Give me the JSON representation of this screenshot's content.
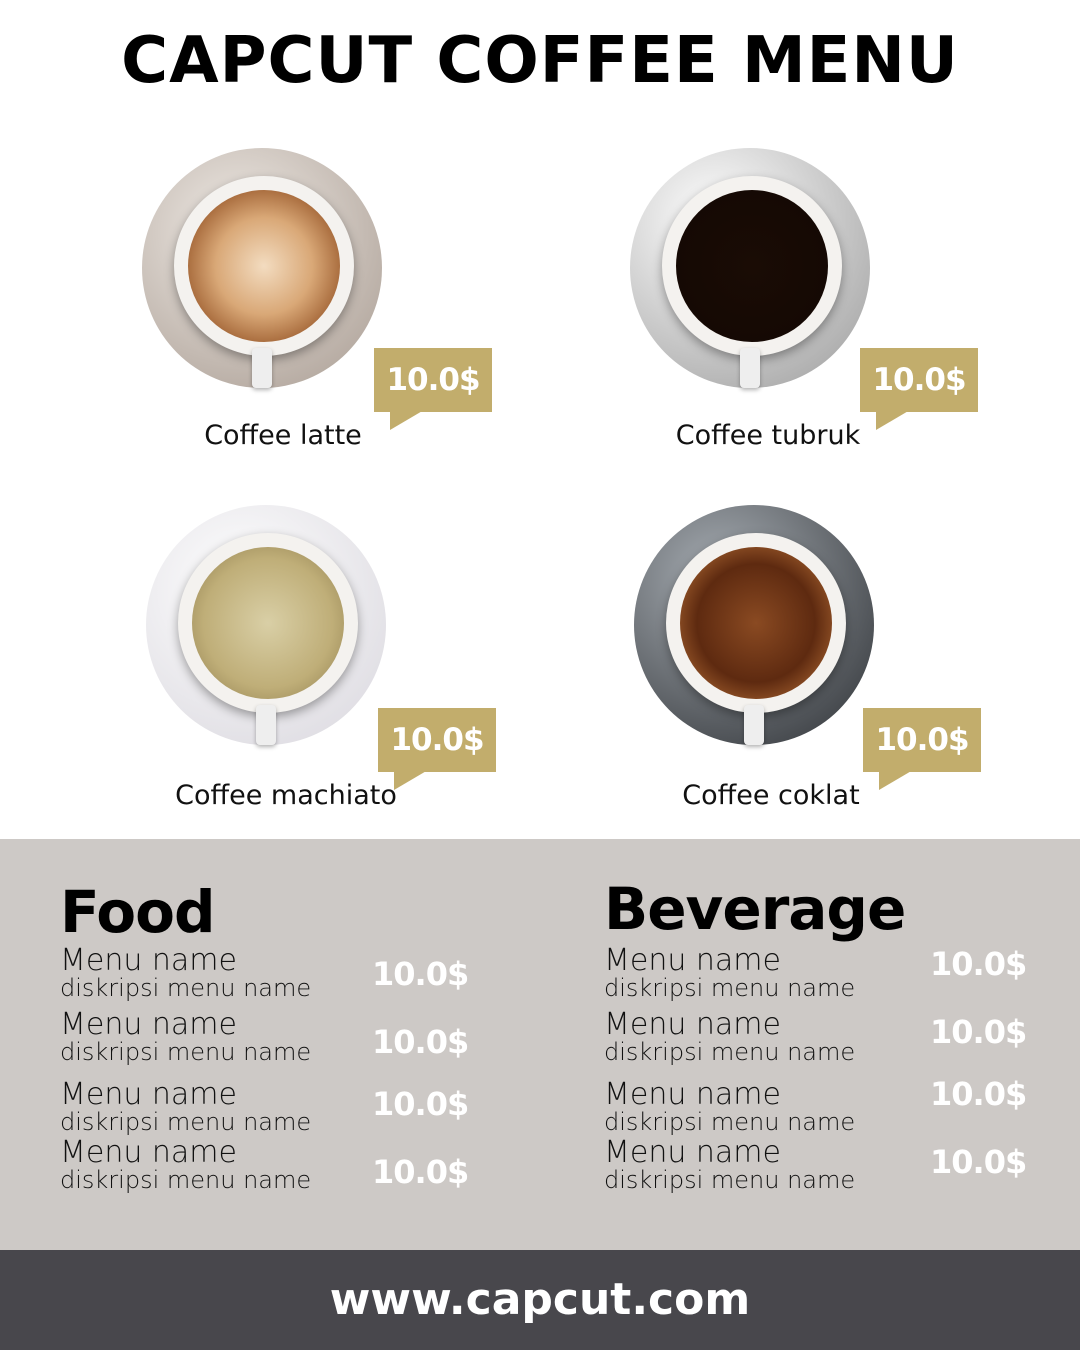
{
  "title": "CAPCUT COFFEE MENU",
  "colors": {
    "tag": "#c2ad6c",
    "band": "#cdc9c6",
    "footer": "#48474c"
  },
  "coffees": [
    {
      "name": "Coffee latte",
      "price": "10.0$"
    },
    {
      "name": "Coffee tubruk",
      "price": "10.0$"
    },
    {
      "name": "Coffee machiato",
      "price": "10.0$"
    },
    {
      "name": "Coffee coklat",
      "price": "10.0$"
    }
  ],
  "food": {
    "title": "Food",
    "items": [
      {
        "name": "Menu name",
        "desc": "diskripsi menu name",
        "price": "10.0$"
      },
      {
        "name": "Menu name",
        "desc": "diskripsi menu name",
        "price": "10.0$"
      },
      {
        "name": "Menu name",
        "desc": "diskripsi menu name",
        "price": "10.0$"
      },
      {
        "name": "Menu name",
        "desc": "diskripsi menu name",
        "price": "10.0$"
      }
    ]
  },
  "beverage": {
    "title": "Beverage",
    "items": [
      {
        "name": "Menu name",
        "desc": "diskripsi menu name",
        "price": "10.0$"
      },
      {
        "name": "Menu name",
        "desc": "diskripsi menu name",
        "price": "10.0$"
      },
      {
        "name": "Menu name",
        "desc": "diskripsi menu name",
        "price": "10.0$"
      },
      {
        "name": "Menu name",
        "desc": "diskripsi menu name",
        "price": "10.0$"
      }
    ]
  },
  "footer": {
    "url": "www.capcut.com"
  }
}
